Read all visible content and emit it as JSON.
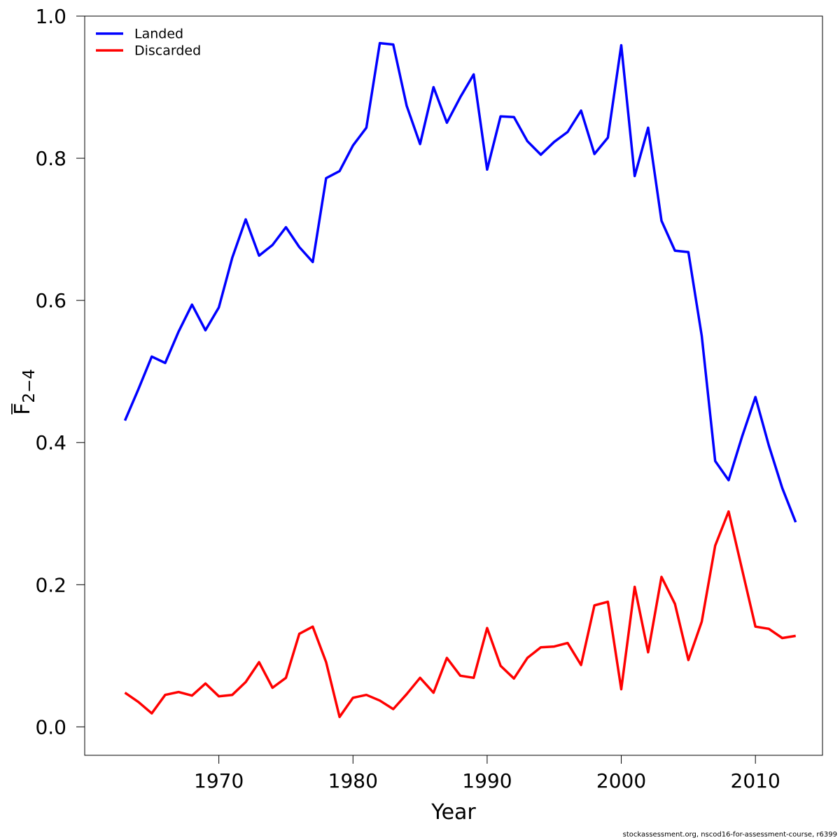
{
  "chart_data": {
    "type": "line",
    "title": "",
    "xlabel": "Year",
    "ylabel_main": "F",
    "ylabel_sub": "2−4",
    "xlim": [
      1960,
      2015
    ],
    "ylim": [
      -0.04,
      1.0
    ],
    "x_ticks": [
      "1970",
      "1980",
      "1990",
      "2000",
      "2010"
    ],
    "y_ticks": [
      "0.0",
      "0.2",
      "0.4",
      "0.6",
      "0.8",
      "1.0"
    ],
    "legend_position": "top-left",
    "grid": false,
    "x": [
      1963,
      1964,
      1965,
      1966,
      1967,
      1968,
      1969,
      1970,
      1971,
      1972,
      1973,
      1974,
      1975,
      1976,
      1977,
      1978,
      1979,
      1980,
      1981,
      1982,
      1983,
      1984,
      1985,
      1986,
      1987,
      1988,
      1989,
      1990,
      1991,
      1992,
      1993,
      1994,
      1995,
      1996,
      1997,
      1998,
      1999,
      2000,
      2001,
      2002,
      2003,
      2004,
      2005,
      2006,
      2007,
      2008,
      2009,
      2010,
      2011,
      2012,
      2013
    ],
    "series": [
      {
        "name": "Landed",
        "color": "#0000ff",
        "values": [
          0.431,
          0.475,
          0.521,
          0.512,
          0.556,
          0.594,
          0.558,
          0.59,
          0.66,
          0.714,
          0.663,
          0.678,
          0.703,
          0.675,
          0.654,
          0.772,
          0.782,
          0.818,
          0.843,
          0.962,
          0.96,
          0.874,
          0.82,
          0.9,
          0.85,
          0.886,
          0.918,
          0.784,
          0.859,
          0.858,
          0.824,
          0.805,
          0.823,
          0.837,
          0.867,
          0.806,
          0.829,
          0.959,
          0.775,
          0.843,
          0.712,
          0.67,
          0.668,
          0.55,
          0.374,
          0.347,
          0.408,
          0.464,
          0.396,
          0.336,
          0.288
        ]
      },
      {
        "name": "Discarded",
        "color": "#ff0000",
        "values": [
          0.048,
          0.035,
          0.019,
          0.045,
          0.049,
          0.044,
          0.061,
          0.043,
          0.045,
          0.063,
          0.091,
          0.055,
          0.069,
          0.131,
          0.141,
          0.091,
          0.014,
          0.041,
          0.045,
          0.037,
          0.025,
          0.046,
          0.069,
          0.048,
          0.097,
          0.072,
          0.069,
          0.139,
          0.086,
          0.068,
          0.097,
          0.112,
          0.113,
          0.118,
          0.087,
          0.171,
          0.176,
          0.053,
          0.197,
          0.105,
          0.211,
          0.173,
          0.094,
          0.148,
          0.255,
          0.303,
          0.222,
          0.141,
          0.138,
          0.125,
          0.128
        ]
      }
    ]
  },
  "footer": {
    "text": "stockassessment.org, nscod16-for-assessment-course, r6399"
  }
}
